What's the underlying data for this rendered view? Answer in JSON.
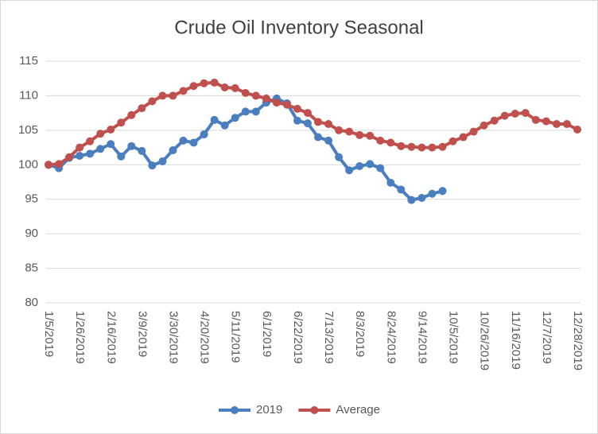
{
  "chart_data": {
    "type": "line",
    "title": "Crude Oil Inventory Seasonal",
    "categories": [
      "1/5/2019",
      null,
      null,
      "1/26/2019",
      null,
      null,
      "2/16/2019",
      null,
      null,
      "3/9/2019",
      null,
      null,
      "3/30/2019",
      null,
      null,
      "4/20/2019",
      null,
      null,
      "5/11/2019",
      null,
      null,
      "6/1/2019",
      null,
      null,
      "6/22/2019",
      null,
      null,
      "7/13/2019",
      null,
      null,
      "8/3/2019",
      null,
      null,
      "8/24/2019",
      null,
      null,
      "9/14/2019",
      null,
      null,
      "10/5/2019",
      null,
      null,
      "10/26/2019",
      null,
      null,
      "11/16/2019",
      null,
      null,
      "12/7/2019",
      null,
      null,
      "12/28/2019"
    ],
    "series": [
      {
        "name": "2019",
        "color": "#4a7ebf",
        "values": [
          100,
          99.5,
          101,
          101.3,
          101.6,
          102.3,
          103,
          101.2,
          102.7,
          102,
          99.9,
          100.5,
          102.1,
          103.5,
          103.2,
          104.4,
          106.5,
          105.7,
          106.8,
          107.7,
          107.7,
          109,
          109.6,
          108.9,
          106.4,
          106,
          104,
          103.5,
          101.1,
          99.2,
          99.8,
          100.1,
          99.5,
          97.4,
          96.4,
          94.9,
          95.2,
          95.8,
          96.2,
          null,
          null,
          null,
          null,
          null,
          null,
          null,
          null,
          null,
          null,
          null,
          null,
          null
        ]
      },
      {
        "name": "Average",
        "color": "#c0504d",
        "values": [
          100,
          100.1,
          101.1,
          102.5,
          103.4,
          104.5,
          105.1,
          106.1,
          107.2,
          108.2,
          109.2,
          110,
          110,
          110.7,
          111.4,
          111.8,
          111.9,
          111.2,
          111.1,
          110.4,
          110,
          109.6,
          109,
          108.7,
          108.1,
          107.5,
          106.2,
          105.9,
          105,
          104.8,
          104.3,
          104.2,
          103.5,
          103.2,
          102.7,
          102.6,
          102.5,
          102.5,
          102.6,
          103.4,
          104,
          104.8,
          105.7,
          106.4,
          107.1,
          107.4,
          107.5,
          106.5,
          106.3,
          105.9,
          105.9,
          105.1
        ]
      }
    ],
    "ylim": [
      80,
      115
    ],
    "yticks": [
      80,
      85,
      90,
      95,
      100,
      105,
      110,
      115
    ],
    "grid": true,
    "legend": "bottom"
  }
}
